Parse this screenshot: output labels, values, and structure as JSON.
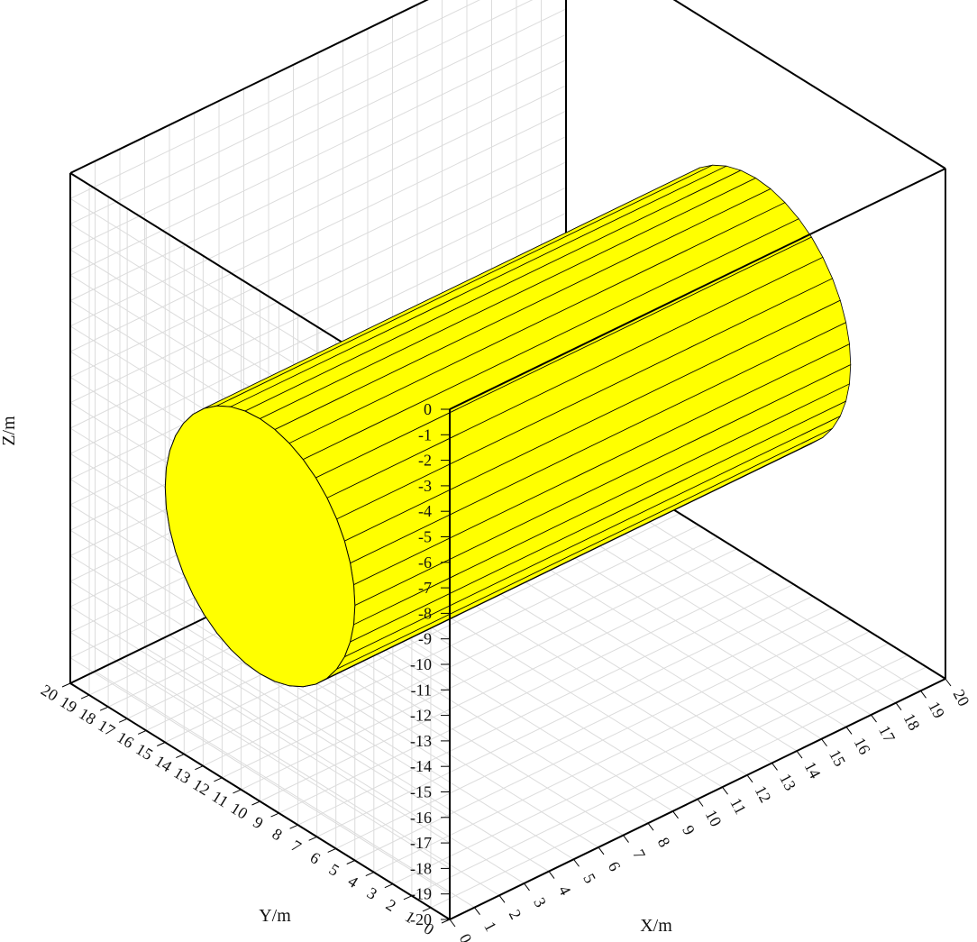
{
  "chart_data": {
    "type": "surface3d",
    "title": "",
    "xlabel": "X/m",
    "ylabel": "Y/m",
    "zlabel": "Z/m",
    "xlim": [
      0,
      20
    ],
    "ylim": [
      0,
      20
    ],
    "zlim": [
      -20,
      0
    ],
    "xticks": [
      "0",
      "1",
      "2",
      "3",
      "4",
      "5",
      "6",
      "7",
      "8",
      "9",
      "10",
      "11",
      "12",
      "13",
      "14",
      "15",
      "16",
      "17",
      "18",
      "19",
      "20"
    ],
    "yticks": [
      "0",
      "1",
      "2",
      "3",
      "4",
      "5",
      "6",
      "7",
      "8",
      "9",
      "10",
      "11",
      "12",
      "13",
      "14",
      "15",
      "16",
      "17",
      "18",
      "19",
      "20"
    ],
    "zticks": [
      "-20",
      "-19",
      "-18",
      "-17",
      "-16",
      "-15",
      "-14",
      "-13",
      "-12",
      "-11",
      "-10",
      "-9",
      "-8",
      "-7",
      "-6",
      "-5",
      "-4",
      "-3",
      "-2",
      "-1",
      "0"
    ],
    "grid": true,
    "objects": [
      {
        "shape": "cylinder",
        "axis": "x",
        "x_range": [
          0,
          20
        ],
        "center_y": 10,
        "center_z": -10,
        "radius": 5,
        "facets": 40,
        "face_color": "#ffff00",
        "edge_color": "#000000"
      }
    ]
  }
}
